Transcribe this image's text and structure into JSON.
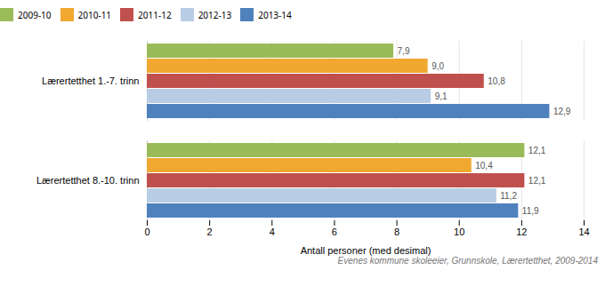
{
  "chart_data": {
    "type": "bar",
    "orientation": "horizontal",
    "categories": [
      "Lærertetthet 1.-7. trinn",
      "Lærertetthet 8.-10. trinn"
    ],
    "series": [
      {
        "name": "2009-10",
        "color": "#9bbb59",
        "values": [
          7.9,
          12.1
        ],
        "value_labels": [
          "7,9",
          "12,1"
        ]
      },
      {
        "name": "2010-11",
        "color": "#f0a830",
        "values": [
          9.0,
          10.4
        ],
        "value_labels": [
          "9,0",
          "10,4"
        ]
      },
      {
        "name": "2011-12",
        "color": "#c0504d",
        "values": [
          10.8,
          12.1
        ],
        "value_labels": [
          "10,8",
          "12,1"
        ]
      },
      {
        "name": "2012-13",
        "color": "#b8cce4",
        "values": [
          9.1,
          11.2
        ],
        "value_labels": [
          "9,1",
          "11,2"
        ]
      },
      {
        "name": "2013-14",
        "color": "#4f81bd",
        "values": [
          12.9,
          11.9
        ],
        "value_labels": [
          "12,9",
          "11,9"
        ]
      }
    ],
    "xlabel": "Antall personer (med desimal)",
    "xlim": [
      0,
      14
    ],
    "xticks": [
      0,
      2,
      4,
      6,
      8,
      10,
      12,
      14
    ],
    "caption": "Evenes kommune skoleeier, Grunnskole, Lærertetthet, 2009-2014",
    "data_labels": true,
    "grid": true,
    "legend": "top"
  }
}
